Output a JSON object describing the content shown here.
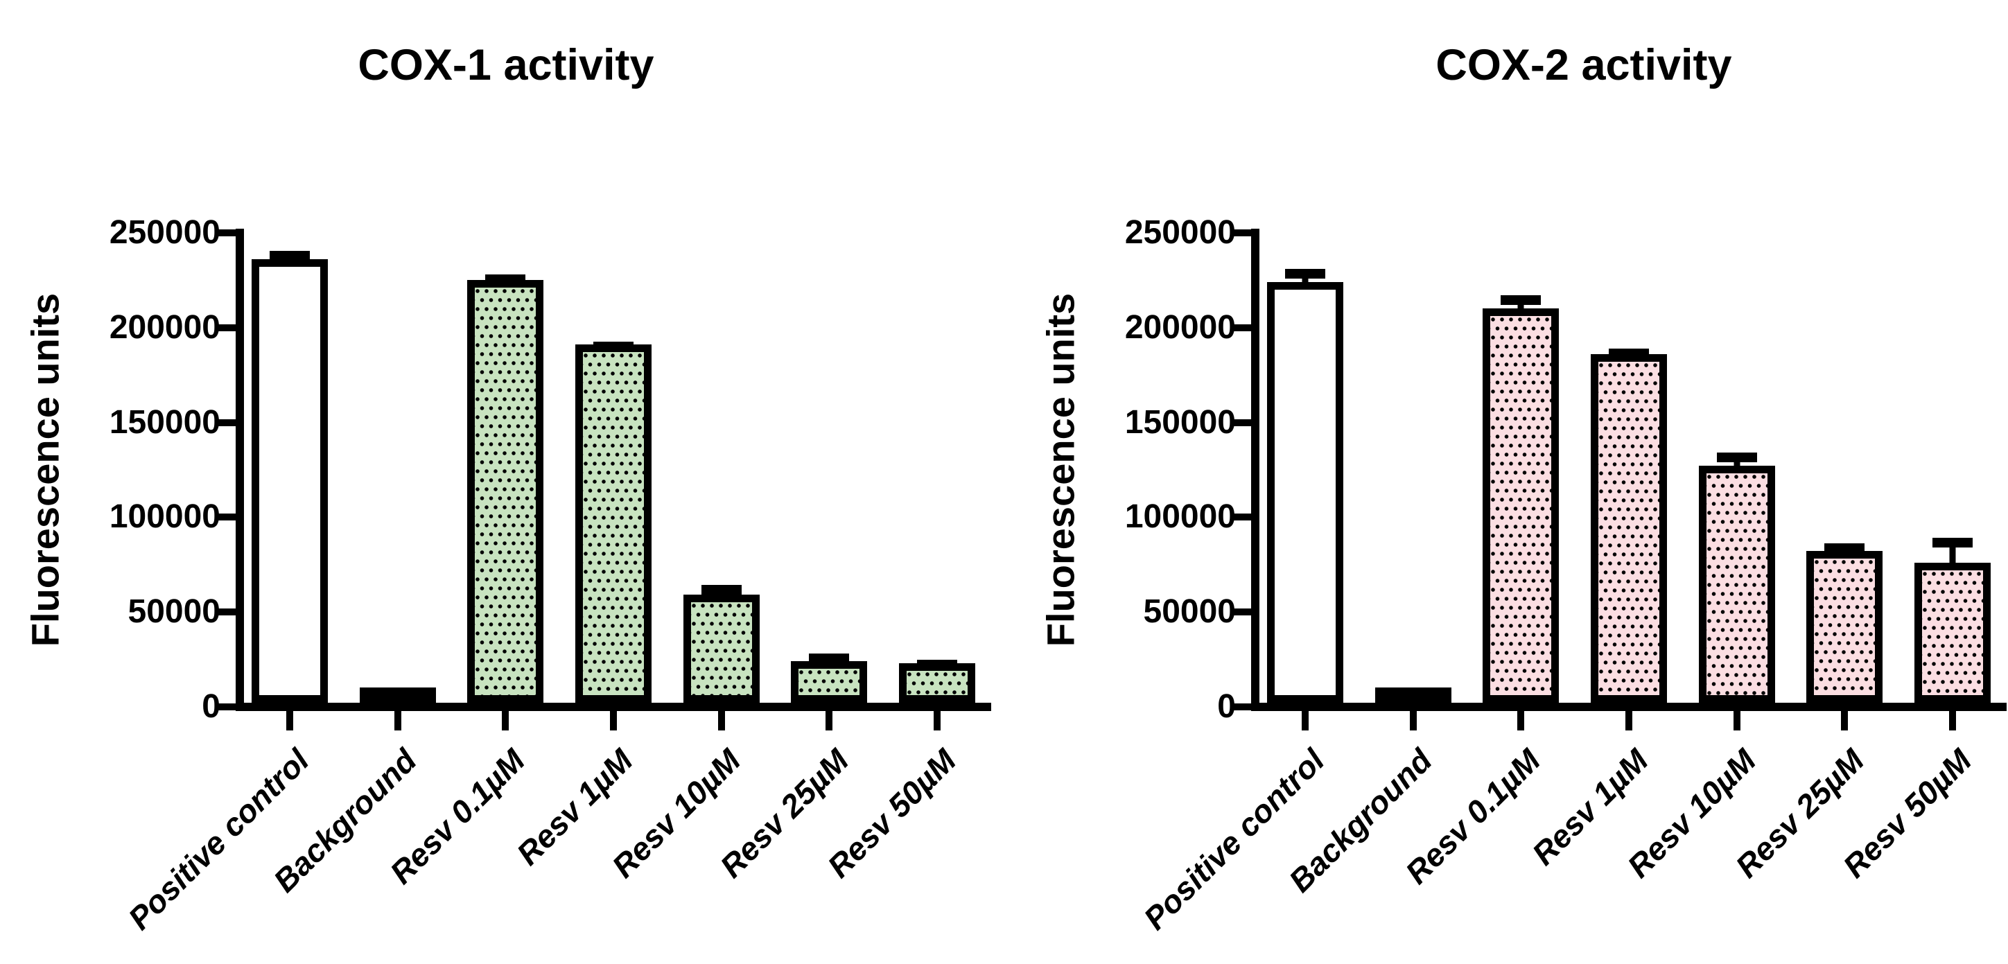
{
  "page": {
    "background": "#ffffff",
    "axis_color": "#000000"
  },
  "chart_data": [
    {
      "type": "bar",
      "title": "COX-1 activity",
      "ylabel": "Fluorescence units",
      "ylim": [
        0,
        250000
      ],
      "ytick_values": [
        250000,
        200000,
        150000,
        100000,
        50000,
        0
      ],
      "ytick_labels": [
        "250000",
        "200000",
        "150000",
        "100000",
        "50000",
        "0"
      ],
      "grid": "off",
      "legend": "none",
      "categories": [
        "Positive control",
        "Background",
        "Resv 0.1µM",
        "Resv 1µM",
        "Resv 10µM",
        "Resv 25µM",
        "Resv 50µM"
      ],
      "values": [
        234000,
        5000,
        223000,
        189000,
        57000,
        22000,
        21000
      ],
      "errors_plus": [
        4500,
        1000,
        3000,
        1500,
        5000,
        4000,
        2000
      ],
      "bar_fills": [
        "#ffffff",
        "#c8e3c0",
        "#c8e3c0",
        "#c8e3c0",
        "#c8e3c0",
        "#c8e3c0",
        "#c8e3c0"
      ],
      "bar_patterned": [
        false,
        true,
        true,
        true,
        true,
        true,
        true
      ],
      "bar_edge_color": "#000000",
      "pattern": "black-dots"
    },
    {
      "type": "bar",
      "title": "COX-2 activity",
      "ylabel": "Fluorescence units",
      "ylim": [
        0,
        250000
      ],
      "ytick_values": [
        250000,
        200000,
        150000,
        100000,
        50000,
        0
      ],
      "ytick_labels": [
        "250000",
        "200000",
        "150000",
        "100000",
        "50000",
        "0"
      ],
      "grid": "off",
      "legend": "none",
      "categories": [
        "Positive control",
        "Background",
        "Resv 0.1µM",
        "Resv 1µM",
        "Resv 10µM",
        "Resv 25µM",
        "Resv 50µM"
      ],
      "values": [
        222000,
        6500,
        208000,
        184000,
        125000,
        80000,
        74000
      ],
      "errors_plus": [
        7000,
        1300,
        7000,
        3000,
        7000,
        4000,
        13000
      ],
      "bar_fills": [
        "#ffffff",
        "#fbdee2",
        "#fbdee2",
        "#fbdee2",
        "#fbdee2",
        "#fbdee2",
        "#fbdee2"
      ],
      "bar_patterned": [
        false,
        true,
        true,
        true,
        true,
        true,
        true
      ],
      "bar_edge_color": "#000000",
      "pattern": "black-dots"
    }
  ]
}
